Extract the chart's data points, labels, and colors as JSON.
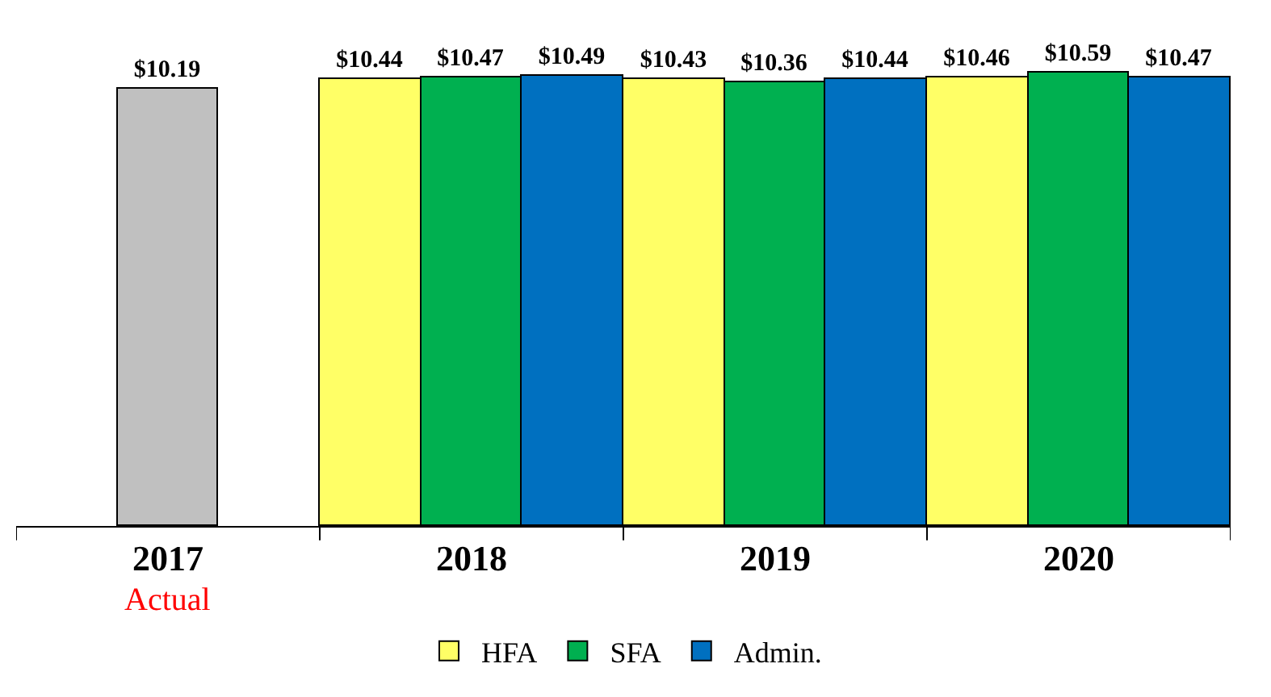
{
  "chart_data": {
    "type": "bar",
    "categories": [
      "2017",
      "2018",
      "2019",
      "2020"
    ],
    "series": [
      {
        "color": "#c0c0c0",
        "values": [
          10.19,
          null,
          null,
          null
        ],
        "value_labels": [
          "$10.19",
          null,
          null,
          null
        ]
      },
      {
        "name": "HFA",
        "color": "#ffff66",
        "values": [
          null,
          10.44,
          10.43,
          10.46
        ],
        "value_labels": [
          null,
          "$10.44",
          "$10.43",
          "$10.46"
        ]
      },
      {
        "name": "SFA",
        "color": "#00b050",
        "values": [
          null,
          10.47,
          10.36,
          10.59
        ],
        "value_labels": [
          null,
          "$10.47",
          "$10.36",
          "$10.59"
        ]
      },
      {
        "name": "Admin.",
        "color": "#0070c0",
        "values": [
          null,
          10.49,
          10.44,
          10.47
        ],
        "value_labels": [
          null,
          "$10.49",
          "$10.44",
          "$10.47"
        ]
      }
    ],
    "annotations": [
      "Actual"
    ],
    "legend": "bottom"
  }
}
